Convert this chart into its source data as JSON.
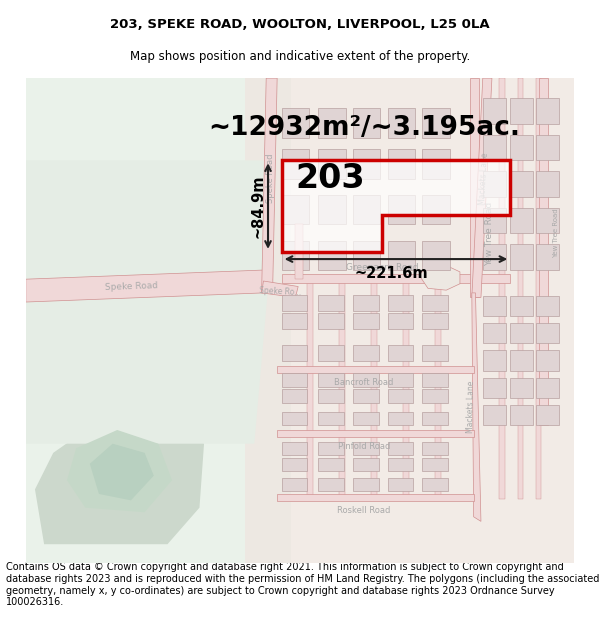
{
  "title": "203, SPEKE ROAD, WOOLTON, LIVERPOOL, L25 0LA",
  "subtitle": "Map shows position and indicative extent of the property.",
  "footer": "Contains OS data © Crown copyright and database right 2021. This information is subject to Crown copyright and database rights 2023 and is reproduced with the permission of HM Land Registry. The polygons (including the associated geometry, namely x, y co-ordinates) are subject to Crown copyright and database rights 2023 Ordnance Survey 100026316.",
  "area_text": "~12932m²/~3.195ac.",
  "label": "203",
  "dim_width": "~221.6m",
  "dim_height": "~84.9m",
  "title_fontsize": 9.5,
  "subtitle_fontsize": 8.5,
  "footer_fontsize": 7.0,
  "area_fontsize": 19,
  "label_fontsize": 24,
  "dim_fontsize": 10.5,
  "road_label_fontsize": 6.5,
  "fig_width": 6.0,
  "fig_height": 6.25,
  "bg_light_green": "#eaf2ea",
  "bg_map": "#f5f0ec",
  "road_fill": "#f0d8d8",
  "road_edge": "#d09090",
  "property_color": "#cc0000",
  "parcel_fill": "#ede8e4",
  "parcel_edge": "#c8b0b0",
  "block_fill": "#e0d4d4",
  "block_edge": "#b8a0a0",
  "dim_color": "#222222",
  "road_label_color": "#aaaaaa",
  "road_label_color2": "#888888"
}
